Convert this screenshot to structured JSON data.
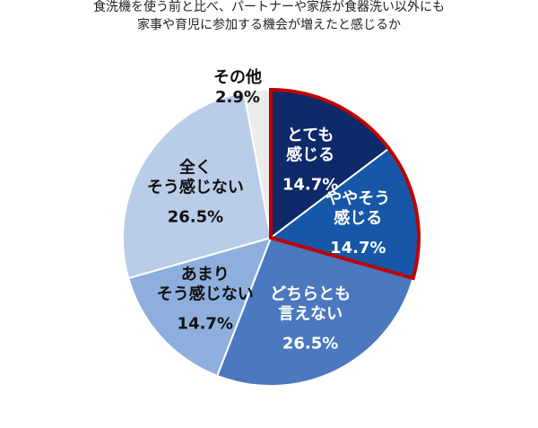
{
  "chart_data": {
    "type": "pie",
    "title": "食洗機を使う前と比べ、パートナーや家族が食器洗い以外にも\n家事や育児に参加する機会が増えたと感じるか",
    "categories": [
      "とても\n感じる",
      "ややそう\n感じる",
      "どちらとも\n言えない",
      "あまり\nそう感じない",
      "全く\nそう感じない",
      "その他"
    ],
    "values": [
      14.7,
      14.7,
      26.5,
      14.7,
      26.5,
      2.9
    ],
    "value_labels": [
      "14.7%",
      "14.7%",
      "26.5%",
      "14.7%",
      "26.5%",
      "2.9%"
    ],
    "colors": [
      "#0e2a6a",
      "#1657a8",
      "#4b78bf",
      "#8eafdd",
      "#b9cce8",
      "#ececec"
    ],
    "highlight_color": "#c00000"
  }
}
